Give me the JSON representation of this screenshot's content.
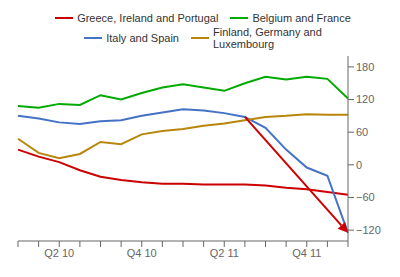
{
  "chart_data": {
    "type": "line",
    "categories": [
      null,
      null,
      "Q2 10",
      null,
      null,
      null,
      "Q4 10",
      null,
      null,
      null,
      "Q2 11",
      null,
      null,
      null,
      "Q4 11",
      null,
      null
    ],
    "series": [
      {
        "name": "Greece, Ireland and Portugal",
        "color": "#cc0000",
        "values": [
          28,
          15,
          5,
          -10,
          -22,
          -28,
          -32,
          -35,
          -35,
          -36,
          -36,
          -36,
          -38,
          -42,
          -45,
          -50,
          -55
        ]
      },
      {
        "name": "Belgium and France",
        "color": "#00aa00",
        "values": [
          108,
          105,
          112,
          110,
          128,
          120,
          132,
          142,
          148,
          142,
          136,
          150,
          162,
          157,
          162,
          158,
          122
        ]
      },
      {
        "name": "Italy and Spain",
        "color": "#4472c4",
        "values": [
          90,
          85,
          78,
          75,
          80,
          82,
          90,
          96,
          102,
          100,
          95,
          88,
          68,
          28,
          -5,
          -20,
          -125
        ]
      },
      {
        "name": "Finland, Germany and\nLuxembourg",
        "color": "#b8860b",
        "values": [
          48,
          22,
          12,
          20,
          42,
          38,
          56,
          62,
          66,
          72,
          76,
          82,
          88,
          90,
          93,
          92,
          92
        ]
      }
    ],
    "ylim": [
      -140,
      200
    ],
    "yticks": [
      {
        "value": -120,
        "label": "−120"
      },
      {
        "value": -60,
        "label": "−60"
      },
      0,
      60,
      120,
      180
    ],
    "grid": false,
    "legend": "top",
    "annotations": [
      {
        "type": "arrow",
        "series": "Italy and Spain",
        "x_start": 11,
        "x_end": 16,
        "color": "#cc0000"
      }
    ]
  }
}
